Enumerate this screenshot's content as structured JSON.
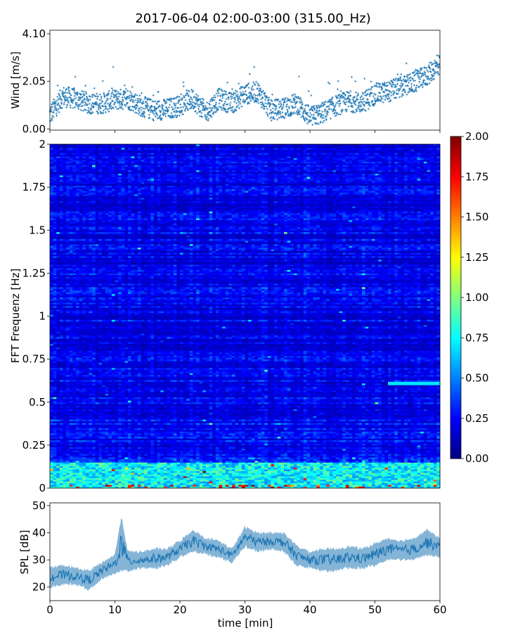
{
  "figure": {
    "title": "2017-06-04 02:00-03:00 (315.00_Hz)"
  },
  "chart_data": [
    {
      "type": "scatter",
      "name": "wind",
      "ylabel": "Wind [m/s]",
      "xlim": [
        0,
        60
      ],
      "ylim": [
        -0.05,
        4.25
      ],
      "yticks": [
        "0.00",
        "2.05",
        "4.10"
      ],
      "ytick_values": [
        0.0,
        2.05,
        4.1
      ],
      "marker": "+",
      "color": "#1f77b4",
      "points_per_minute": 30,
      "trend": {
        "x": [
          0,
          2,
          4,
          6,
          8,
          10,
          12,
          14,
          16,
          18,
          20,
          22,
          24,
          26,
          28,
          30,
          32,
          34,
          36,
          38,
          40,
          42,
          44,
          46,
          48,
          50,
          52,
          54,
          56,
          58,
          60
        ],
        "wind": [
          0.6,
          1.4,
          1.3,
          1.1,
          1.1,
          1.25,
          1.3,
          1.0,
          0.8,
          0.85,
          1.0,
          1.3,
          0.7,
          1.3,
          1.1,
          1.5,
          1.6,
          0.8,
          0.9,
          1.1,
          0.5,
          0.7,
          1.0,
          1.2,
          1.1,
          1.5,
          1.6,
          1.8,
          2.0,
          2.3,
          2.8
        ]
      }
    },
    {
      "type": "heatmap",
      "name": "spectrogram",
      "ylabel": "FFT Frequenz [Hz]",
      "xlim": [
        0,
        60
      ],
      "ylim": [
        0,
        2
      ],
      "yticks": [
        "0",
        "0.25",
        "0.5",
        "0.75",
        "1",
        "1.25",
        "1.5",
        "1.75",
        "2"
      ],
      "ytick_values": [
        0,
        0.25,
        0.5,
        0.75,
        1,
        1.25,
        1.5,
        1.75,
        2
      ],
      "colormap": "jet",
      "clim": [
        0,
        2
      ],
      "colorbar_ticks": [
        "0.00",
        "0.25",
        "0.50",
        "0.75",
        "1.00",
        "1.25",
        "1.50",
        "1.75",
        "2.00"
      ],
      "colorbar_tick_values": [
        0,
        0.25,
        0.5,
        0.75,
        1,
        1.25,
        1.5,
        1.75,
        2
      ],
      "time_bins": 120,
      "freq_bins": 200,
      "background_level": 0.22,
      "low_frequency_band": {
        "freq_max": 0.15,
        "level": 0.75,
        "peak_level": 1.9
      },
      "highlight_band": {
        "x0": 52,
        "x1": 60,
        "freq": 0.61,
        "level": 0.7
      }
    },
    {
      "type": "line",
      "name": "spl",
      "xlabel": "time [min]",
      "ylabel": "SPL [dB]",
      "xlim": [
        0,
        60
      ],
      "ylim": [
        15,
        51
      ],
      "xticks": [
        "0",
        "10",
        "20",
        "30",
        "40",
        "50",
        "60"
      ],
      "xtick_values": [
        0,
        10,
        20,
        30,
        40,
        50,
        60
      ],
      "yticks": [
        "20",
        "30",
        "40",
        "50"
      ],
      "ytick_values": [
        20,
        30,
        40,
        50
      ],
      "color": "#1f77b4",
      "envelope": {
        "x": [
          0,
          2,
          4,
          6,
          8,
          10,
          11,
          12,
          14,
          16,
          18,
          20,
          22,
          24,
          26,
          28,
          30,
          32,
          34,
          36,
          38,
          40,
          42,
          44,
          46,
          48,
          50,
          52,
          54,
          56,
          58,
          60
        ],
        "low": [
          20,
          21,
          21,
          19,
          23,
          25,
          26,
          26,
          27,
          27,
          28,
          31,
          33,
          32,
          31,
          29,
          35,
          33,
          34,
          33,
          28,
          27,
          26,
          26,
          27,
          27,
          28,
          30,
          30,
          30,
          32,
          31
        ],
        "high": [
          27,
          28,
          27,
          26,
          29,
          32,
          46,
          33,
          33,
          34,
          34,
          37,
          41,
          38,
          37,
          34,
          42,
          40,
          40,
          40,
          35,
          33,
          34,
          34,
          35,
          34,
          36,
          38,
          37,
          38,
          41,
          38
        ]
      }
    }
  ]
}
